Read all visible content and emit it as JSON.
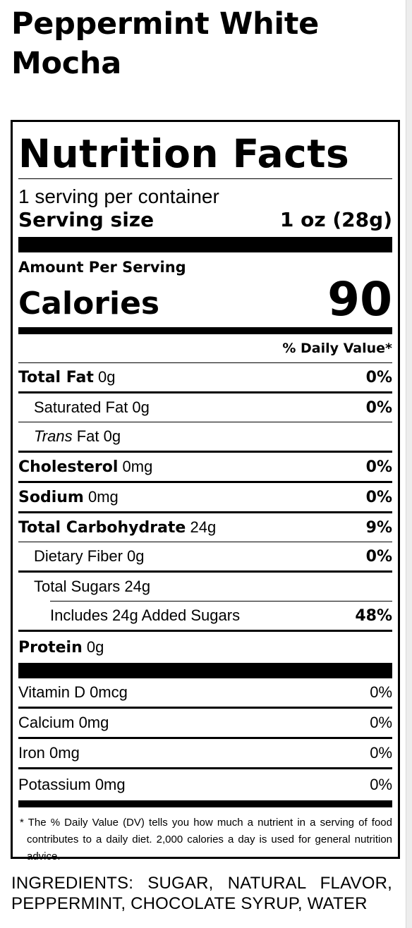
{
  "product": {
    "title": "Peppermint White Mocha"
  },
  "label": {
    "title": "Nutrition Facts",
    "servings_per_container": "1 serving per container",
    "serving_size_label": "Serving size",
    "serving_size_value": "1 oz (28g)",
    "amount_per_serving": "Amount Per Serving",
    "calories_label": "Calories",
    "calories_value": "90",
    "daily_value_header": "% Daily Value*",
    "nutrients": [
      {
        "name": "Total Fat",
        "amount": "0g",
        "dv": "0%"
      },
      {
        "name": "Saturated Fat 0g",
        "dv": "0%"
      },
      {
        "name_italic": "Trans",
        "name_rest": "Fat 0g",
        "dv": ""
      },
      {
        "name": "Cholesterol",
        "amount": "0mg",
        "dv": "0%"
      },
      {
        "name": "Sodium",
        "amount": "0mg",
        "dv": "0%"
      },
      {
        "name": "Total Carbohydrate",
        "amount": "24g",
        "dv": "9%"
      },
      {
        "name": "Dietary Fiber 0g",
        "dv": "0%"
      },
      {
        "name": "Total Sugars 24g",
        "dv": ""
      },
      {
        "name": "Includes 24g Added Sugars",
        "dv": "48%"
      },
      {
        "name": "Protein",
        "amount": "0g",
        "dv": ""
      }
    ],
    "vitamins": [
      {
        "name": "Vitamin D 0mcg",
        "dv": "0%"
      },
      {
        "name": "Calcium 0mg",
        "dv": "0%"
      },
      {
        "name": "Iron 0mg",
        "dv": "0%"
      },
      {
        "name": "Potassium 0mg",
        "dv": "0%"
      }
    ],
    "footnote": "* The % Daily Value (DV) tells you how much a nutrient in a serving of food contributes to a daily diet. 2,000 calories a day is used for general nutrition advice."
  },
  "ingredients": "INGREDIENTS: SUGAR, NATURAL FLAVOR, PEPPERMINT, CHOCOLATE SYRUP, WATER"
}
